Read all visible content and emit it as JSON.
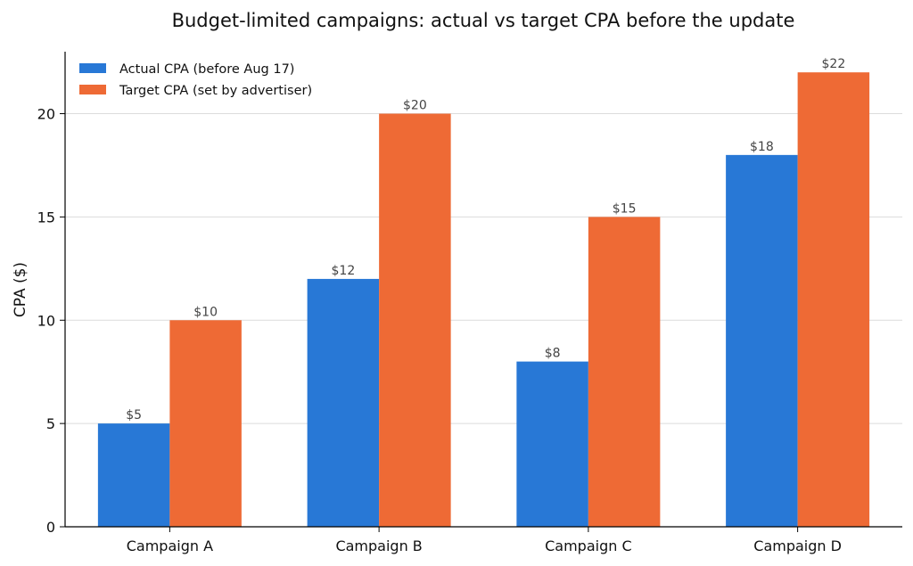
{
  "chart_data": {
    "type": "bar",
    "title": "Budget-limited campaigns: actual vs target CPA before the update",
    "xlabel": "",
    "ylabel": "CPA ($)",
    "categories": [
      "Campaign A",
      "Campaign B",
      "Campaign C",
      "Campaign D"
    ],
    "series": [
      {
        "name": "Actual CPA (before Aug 17)",
        "color": "#2878d6",
        "values": [
          5,
          12,
          8,
          18
        ],
        "labels": [
          "$5",
          "$12",
          "$8",
          "$18"
        ]
      },
      {
        "name": "Target CPA (set by advertiser)",
        "color": "#ee6a35",
        "values": [
          10,
          20,
          15,
          22
        ],
        "labels": [
          "$10",
          "$20",
          "$15",
          "$22"
        ]
      }
    ],
    "ylim": [
      0,
      23
    ],
    "yticks": [
      0,
      5,
      10,
      15,
      20
    ],
    "ytick_labels": [
      "0",
      "5",
      "10",
      "15",
      "20"
    ],
    "grid": "horizontal",
    "legend_position": "top-left"
  }
}
